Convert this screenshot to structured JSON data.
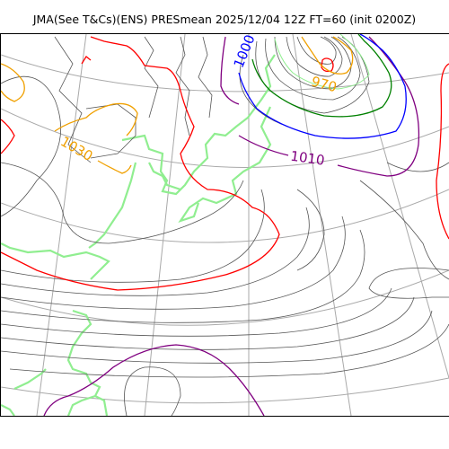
{
  "title": "JMA(See T&Cs)(ENS) PRESmean 2025/12/04 12Z FT=60 (init 0200Z)",
  "contour_labels": [
    {
      "text": "1030",
      "color": "#f0a000"
    },
    {
      "text": "1010",
      "color": "#800080"
    },
    {
      "text": "1000",
      "color": "#0000ff"
    },
    {
      "text": "970",
      "color": "#f0a000"
    }
  ],
  "colors": {
    "coastline": "#90ee90",
    "grid": "#a9a9a9",
    "isobar": "#555555",
    "isobar_1020": "#ff0000",
    "isobar_1010": "#800080",
    "isobar_1000": "#0000ff",
    "isobar_990": "#008000",
    "isobar_970": "#f0a000"
  }
}
